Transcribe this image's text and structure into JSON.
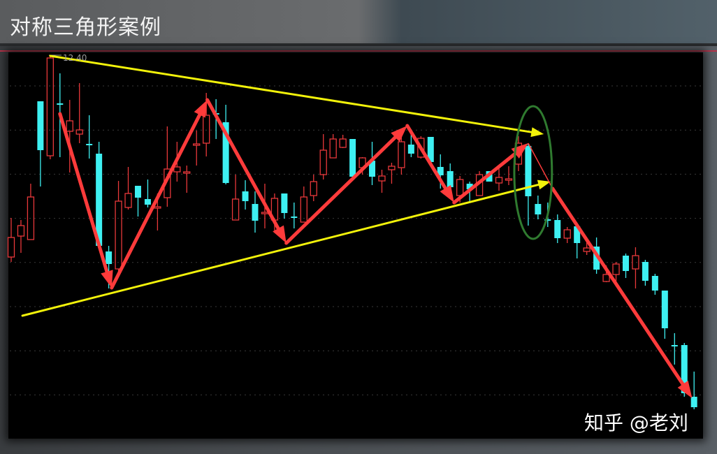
{
  "title": "对称三角形案例",
  "watermark": "知乎 @老刘",
  "chart_data": {
    "type": "candlestick",
    "title": "对称三角形案例",
    "high_label": "12.40",
    "grid": true,
    "colors": {
      "up": "#e8383a",
      "down": "#3ef0f2",
      "trendline": "#f2f20a",
      "wave_arrow": "#ff3b3b",
      "highlight_ellipse": "#2f7a2f",
      "background": "#000000"
    },
    "candles": [
      {
        "o": 9.52,
        "h": 10.08,
        "l": 9.45,
        "c": 9.8
      },
      {
        "o": 9.82,
        "h": 10.05,
        "l": 9.58,
        "c": 9.97
      },
      {
        "o": 9.77,
        "h": 10.57,
        "l": 9.77,
        "c": 10.38
      },
      {
        "o": 11.75,
        "h": 11.75,
        "l": 10.53,
        "c": 11.05
      },
      {
        "o": 10.97,
        "h": 12.4,
        "l": 10.92,
        "c": 12.37
      },
      {
        "o": 11.72,
        "h": 12.15,
        "l": 10.95,
        "c": 11.7
      },
      {
        "o": 11.32,
        "h": 11.77,
        "l": 10.73,
        "c": 11.47
      },
      {
        "o": 11.28,
        "h": 12.01,
        "l": 11.15,
        "c": 11.34
      },
      {
        "o": 11.14,
        "h": 11.55,
        "l": 10.93,
        "c": 11.12
      },
      {
        "o": 11.0,
        "h": 11.17,
        "l": 9.68,
        "c": 9.68
      },
      {
        "o": 9.6,
        "h": 9.68,
        "l": 9.07,
        "c": 9.42
      },
      {
        "o": 9.35,
        "h": 10.61,
        "l": 9.28,
        "c": 10.32
      },
      {
        "o": 10.23,
        "h": 10.81,
        "l": 10.2,
        "c": 10.43
      },
      {
        "o": 10.54,
        "h": 10.54,
        "l": 10.1,
        "c": 10.37
      },
      {
        "o": 10.35,
        "h": 10.63,
        "l": 10.23,
        "c": 10.27
      },
      {
        "o": 10.22,
        "h": 10.43,
        "l": 9.9,
        "c": 10.24
      },
      {
        "o": 10.37,
        "h": 11.39,
        "l": 10.24,
        "c": 10.78
      },
      {
        "o": 10.74,
        "h": 11.17,
        "l": 10.6,
        "c": 10.81
      },
      {
        "o": 10.72,
        "h": 10.83,
        "l": 10.44,
        "c": 10.74
      },
      {
        "o": 11.12,
        "h": 11.33,
        "l": 10.83,
        "c": 11.14
      },
      {
        "o": 11.15,
        "h": 11.87,
        "l": 10.96,
        "c": 11.55
      },
      {
        "o": 11.58,
        "h": 11.78,
        "l": 11.21,
        "c": 11.56
      },
      {
        "o": 11.45,
        "h": 11.7,
        "l": 10.56,
        "c": 10.58
      },
      {
        "o": 10.05,
        "h": 10.7,
        "l": 10.05,
        "c": 10.35
      },
      {
        "o": 10.46,
        "h": 10.62,
        "l": 10.2,
        "c": 10.32
      },
      {
        "o": 10.28,
        "h": 10.46,
        "l": 9.87,
        "c": 10.04
      },
      {
        "o": 10.14,
        "h": 10.57,
        "l": 9.93,
        "c": 10.16
      },
      {
        "o": 10.05,
        "h": 10.43,
        "l": 9.9,
        "c": 10.36
      },
      {
        "o": 10.43,
        "h": 10.43,
        "l": 10.07,
        "c": 10.15
      },
      {
        "o": 10.1,
        "h": 10.3,
        "l": 9.93,
        "c": 10.08
      },
      {
        "o": 10.02,
        "h": 10.53,
        "l": 10.02,
        "c": 10.38
      },
      {
        "o": 10.4,
        "h": 10.7,
        "l": 10.32,
        "c": 10.6
      },
      {
        "o": 10.7,
        "h": 11.28,
        "l": 10.63,
        "c": 11.05
      },
      {
        "o": 10.94,
        "h": 11.28,
        "l": 10.94,
        "c": 11.21
      },
      {
        "o": 11.09,
        "h": 11.27,
        "l": 11.08,
        "c": 11.21
      },
      {
        "o": 11.21,
        "h": 11.21,
        "l": 10.67,
        "c": 10.67
      },
      {
        "o": 10.8,
        "h": 10.95,
        "l": 10.7,
        "c": 10.94
      },
      {
        "o": 10.9,
        "h": 11.17,
        "l": 10.55,
        "c": 10.67
      },
      {
        "o": 10.61,
        "h": 10.77,
        "l": 10.44,
        "c": 10.68
      },
      {
        "o": 10.77,
        "h": 10.87,
        "l": 10.57,
        "c": 10.82
      },
      {
        "o": 10.8,
        "h": 11.28,
        "l": 10.7,
        "c": 11.17
      },
      {
        "o": 11.13,
        "h": 11.3,
        "l": 10.95,
        "c": 11.0
      },
      {
        "o": 10.95,
        "h": 11.25,
        "l": 10.93,
        "c": 11.22
      },
      {
        "o": 11.24,
        "h": 11.24,
        "l": 10.88,
        "c": 10.88
      },
      {
        "o": 10.81,
        "h": 10.99,
        "l": 10.5,
        "c": 10.69
      },
      {
        "o": 10.75,
        "h": 10.86,
        "l": 10.45,
        "c": 10.52
      },
      {
        "o": 10.4,
        "h": 10.68,
        "l": 10.3,
        "c": 10.63
      },
      {
        "o": 10.57,
        "h": 10.6,
        "l": 10.32,
        "c": 10.49
      },
      {
        "o": 10.4,
        "h": 10.75,
        "l": 10.4,
        "c": 10.7
      },
      {
        "o": 10.75,
        "h": 10.75,
        "l": 10.6,
        "c": 10.6
      },
      {
        "o": 10.58,
        "h": 10.79,
        "l": 10.47,
        "c": 10.66
      },
      {
        "o": 10.62,
        "h": 10.82,
        "l": 10.55,
        "c": 10.64
      },
      {
        "o": 10.85,
        "h": 11.25,
        "l": 10.75,
        "c": 11.15
      },
      {
        "o": 11.11,
        "h": 11.15,
        "l": 9.97,
        "c": 10.39
      },
      {
        "o": 10.28,
        "h": 10.4,
        "l": 10.06,
        "c": 10.13
      },
      {
        "o": 10.06,
        "h": 10.3,
        "l": 9.95,
        "c": 10.04
      },
      {
        "o": 10.05,
        "h": 10.13,
        "l": 9.72,
        "c": 9.79
      },
      {
        "o": 9.79,
        "h": 9.95,
        "l": 9.72,
        "c": 9.91
      },
      {
        "o": 9.96,
        "h": 9.96,
        "l": 9.5,
        "c": 9.72
      },
      {
        "o": 9.6,
        "h": 9.77,
        "l": 9.55,
        "c": 9.65
      },
      {
        "o": 9.67,
        "h": 9.8,
        "l": 9.28,
        "c": 9.34
      },
      {
        "o": 9.17,
        "h": 9.4,
        "l": 9.16,
        "c": 9.27
      },
      {
        "o": 9.27,
        "h": 9.45,
        "l": 9.1,
        "c": 9.42
      },
      {
        "o": 9.54,
        "h": 9.57,
        "l": 9.22,
        "c": 9.32
      },
      {
        "o": 9.35,
        "h": 9.66,
        "l": 9.07,
        "c": 9.54
      },
      {
        "o": 9.45,
        "h": 9.48,
        "l": 9.11,
        "c": 9.18
      },
      {
        "o": 9.25,
        "h": 9.28,
        "l": 8.98,
        "c": 9.04
      },
      {
        "o": 9.04,
        "h": 9.04,
        "l": 8.35,
        "c": 8.5
      },
      {
        "o": 8.26,
        "h": 8.43,
        "l": 7.98,
        "c": 8.24
      },
      {
        "o": 8.26,
        "h": 8.29,
        "l": 7.52,
        "c": 7.57
      },
      {
        "o": 7.52,
        "h": 7.88,
        "l": 7.34,
        "c": 7.37
      }
    ],
    "annotations": {
      "upper_trendline": [
        [
          4.0,
          12.4
        ],
        [
          54.6,
          11.28
        ]
      ],
      "lower_trendline": [
        [
          1.15,
          8.68
        ],
        [
          55.3,
          10.6
        ]
      ],
      "wave_arrows": [
        [
          5.0,
          11.57
        ],
        [
          10.3,
          9.08
        ],
        [
          20.1,
          11.77
        ],
        [
          28.2,
          9.72
        ],
        [
          40.6,
          11.4
        ],
        [
          45.4,
          10.3
        ],
        [
          53.0,
          11.15
        ]
      ],
      "breakdown_arrow": [
        [
          53.0,
          11.15
        ],
        [
          55.5,
          10.5
        ],
        [
          69.8,
          7.5
        ]
      ],
      "highlight_ellipse": {
        "center": [
          53.5,
          10.73
        ],
        "radius_candles": 1.93,
        "radius_price": 0.95
      }
    }
  }
}
